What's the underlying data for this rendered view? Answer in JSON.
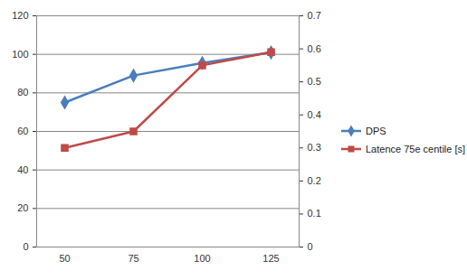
{
  "chart_data": {
    "type": "line",
    "categories": [
      50,
      75,
      100,
      125
    ],
    "series": [
      {
        "name": "DPS",
        "color": "#4a7ebb",
        "marker": "diamond",
        "values": [
          75,
          89,
          95.5,
          101
        ]
      },
      {
        "name": "Latence 75e centile [s]",
        "color": "#be4b48",
        "marker": "square",
        "axis": "y2",
        "values": [
          0.3,
          0.35,
          0.55,
          0.59
        ]
      }
    ],
    "ylim": [
      0,
      120
    ],
    "yticks": [
      0,
      20,
      40,
      60,
      80,
      100,
      120
    ],
    "y2lim": [
      0,
      0.7
    ],
    "y2ticks": [
      0,
      0.1,
      0.2,
      0.3,
      0.4,
      0.5,
      0.6,
      0.7
    ],
    "grid": true,
    "legend": "right"
  }
}
